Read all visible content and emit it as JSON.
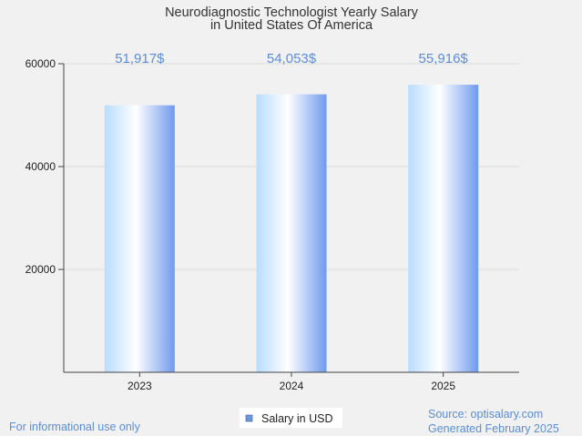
{
  "chart_data": {
    "type": "bar",
    "title_line1": "Neurodiagnostic Technologist Yearly Salary",
    "title_line2": "in United States Of America",
    "categories": [
      "2023",
      "2024",
      "2025"
    ],
    "values": [
      51917,
      54053,
      55916
    ],
    "value_labels": [
      "51,917$",
      "54,053$",
      "55,916$"
    ],
    "ylim": [
      0,
      60000
    ],
    "yticks": [
      20000,
      40000,
      60000
    ],
    "ytick_labels": [
      "20000",
      "40000",
      "60000"
    ],
    "grid": true,
    "legend": {
      "label": "Salary in USD",
      "position": "bottom-center"
    },
    "colors": {
      "bar_light": "#ffffff",
      "bar_mid": "#b9dcff",
      "bar_dark": "#6f9aee",
      "value_label": "#5b8dd6",
      "legend_swatch": "#6c9ad8"
    }
  },
  "footer": {
    "note": "For informational use only",
    "source": "Source: optisalary.com",
    "generated": "Generated February 2025"
  }
}
